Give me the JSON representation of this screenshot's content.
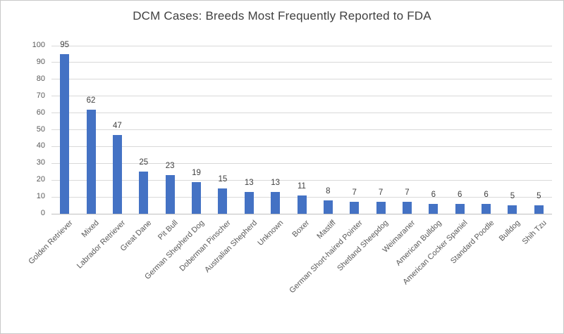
{
  "chart_data": {
    "type": "bar",
    "title": "DCM Cases: Breeds Most Frequently Reported to FDA",
    "categories": [
      "Golden Retriever",
      "Mixed",
      "Labrador Retriever",
      "Great Dane",
      "Pit Bull",
      "German Shepherd Dog",
      "Doberman Pinscher",
      "Australian Shepherd",
      "Unknown",
      "Boxer",
      "Mastiff",
      "German Short-haired Pointer",
      "Shetland Sheepdog",
      "Weimaraner",
      "American Bulldog",
      "American Cocker Spaniel",
      "Standard Poodle",
      "Bulldog",
      "Shih Tzu"
    ],
    "values": [
      95,
      62,
      47,
      25,
      23,
      19,
      15,
      13,
      13,
      11,
      8,
      7,
      7,
      7,
      6,
      6,
      6,
      5,
      5
    ],
    "xlabel": "",
    "ylabel": "",
    "ylim": [
      0,
      100
    ],
    "yticks": [
      0,
      10,
      20,
      30,
      40,
      50,
      60,
      70,
      80,
      90,
      100
    ],
    "grid": "horizontal",
    "legend": "none",
    "data_labels": true,
    "bar_color": "#4472c4",
    "gridline_color": "#d9d9d9",
    "axis_line_color": "#bfbfbf",
    "label_color": "#595959",
    "title_color": "#404040"
  }
}
